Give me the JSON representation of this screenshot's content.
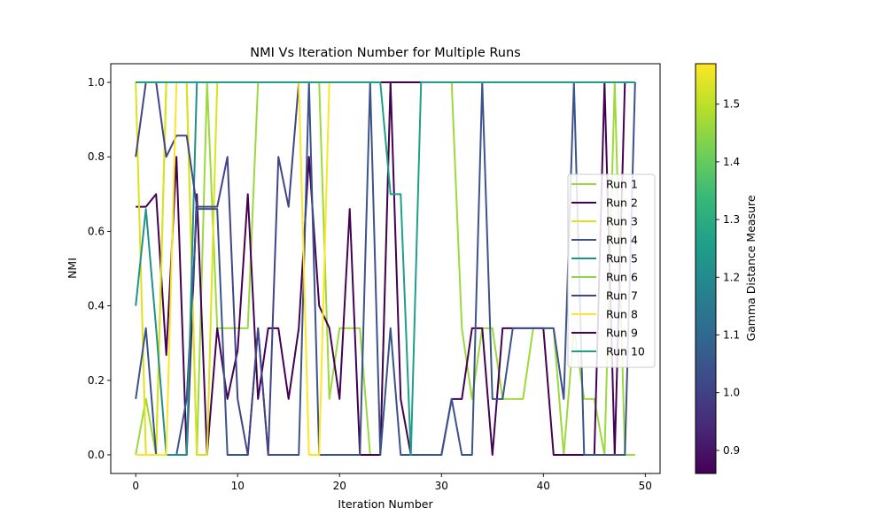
{
  "chart_data": {
    "type": "line",
    "title": "NMI Vs Iteration Number for Multiple Runs",
    "xlabel": "Iteration Number",
    "ylabel": "NMI",
    "xlim": [
      -2.45,
      51.45
    ],
    "ylim": [
      -0.05,
      1.05
    ],
    "xticks": [
      0,
      10,
      20,
      30,
      40,
      50
    ],
    "xtick_labels": [
      "0",
      "10",
      "20",
      "30",
      "40",
      "50"
    ],
    "yticks": [
      0.0,
      0.2,
      0.4,
      0.6,
      0.8,
      1.0
    ],
    "ytick_labels": [
      "0.0",
      "0.2",
      "0.4",
      "0.6",
      "0.8",
      "1.0"
    ],
    "grid": false,
    "legend_position": "center-right",
    "x": [
      0,
      1,
      2,
      3,
      4,
      5,
      6,
      7,
      8,
      9,
      10,
      11,
      12,
      13,
      14,
      15,
      16,
      17,
      18,
      19,
      20,
      21,
      22,
      23,
      24,
      25,
      26,
      27,
      28,
      29,
      30,
      31,
      32,
      33,
      34,
      35,
      36,
      37,
      38,
      39,
      40,
      41,
      42,
      43,
      44,
      45,
      46,
      47,
      48,
      49
    ],
    "series": [
      {
        "name": "Run 1",
        "color": "#9bd93c",
        "values": [
          0.0,
          0.15,
          0.0,
          1.0,
          1.0,
          1.0,
          0.0,
          1.0,
          0.34,
          0.34,
          0.34,
          0.34,
          1.0,
          1.0,
          1.0,
          1.0,
          1.0,
          1.0,
          1.0,
          0.15,
          0.34,
          0.34,
          0.34,
          0.0,
          0.0,
          1.0,
          1.0,
          1.0,
          1.0,
          1.0,
          1.0,
          1.0,
          0.34,
          0.15,
          0.34,
          0.34,
          0.15,
          0.15,
          0.15,
          0.34,
          0.34,
          0.34,
          0.0,
          0.34,
          0.15,
          0.15,
          0.0,
          1.0,
          0.0,
          0.0
        ]
      },
      {
        "name": "Run 2",
        "color": "#440154",
        "values": [
          0.666,
          0.666,
          0.7,
          0.268,
          0.8,
          0.0,
          0.7,
          0.0,
          0.34,
          0.15,
          0.28,
          0.7,
          0.15,
          0.34,
          0.34,
          0.15,
          0.34,
          0.8,
          0.4,
          0.34,
          0.15,
          0.66,
          0.0,
          0.0,
          0.0,
          1.0,
          0.15,
          0.0,
          0.0,
          0.0,
          0.0,
          0.15,
          0.15,
          0.34,
          0.34,
          0.0,
          0.34,
          0.34,
          0.34,
          0.34,
          0.34,
          0.0,
          0.0,
          0.0,
          0.0,
          0.0,
          1.0,
          0.0,
          1.0,
          1.0
        ]
      },
      {
        "name": "Run 3",
        "color": "#dde318",
        "values": [
          1.0,
          0.0,
          0.0,
          1.0,
          1.0,
          1.0,
          0.0,
          0.0,
          1.0,
          1.0,
          1.0,
          1.0,
          1.0,
          1.0,
          1.0,
          1.0,
          1.0,
          1.0,
          1.0,
          1.0,
          1.0,
          1.0,
          1.0,
          1.0,
          1.0,
          1.0,
          1.0,
          1.0,
          1.0,
          1.0,
          1.0,
          1.0,
          1.0,
          1.0,
          1.0,
          1.0,
          1.0,
          1.0,
          1.0,
          1.0,
          1.0,
          1.0,
          1.0,
          1.0,
          1.0,
          1.0,
          1.0,
          1.0,
          1.0,
          1.0
        ]
      },
      {
        "name": "Run 4",
        "color": "#3b528b",
        "values": [
          0.15,
          0.34,
          0.0,
          0.0,
          0.0,
          0.15,
          0.66,
          0.66,
          0.66,
          0.0,
          0.0,
          0.0,
          0.34,
          0.0,
          0.0,
          0.0,
          0.0,
          1.0,
          0.0,
          0.0,
          0.0,
          0.0,
          0.0,
          1.0,
          0.0,
          0.34,
          0.0,
          0.0,
          0.0,
          0.0,
          0.0,
          0.15,
          0.0,
          0.0,
          1.0,
          0.15,
          0.15,
          0.34,
          0.34,
          0.34,
          0.34,
          0.34,
          0.15,
          1.0,
          0.0,
          0.0,
          0.0,
          0.0,
          0.0,
          1.0
        ]
      },
      {
        "name": "Run 5",
        "color": "#21918c",
        "values": [
          0.4,
          0.66,
          0.34,
          0.0,
          0.0,
          0.0,
          1.0,
          1.0,
          1.0,
          1.0,
          1.0,
          1.0,
          1.0,
          1.0,
          1.0,
          1.0,
          1.0,
          1.0,
          1.0,
          1.0,
          1.0,
          1.0,
          1.0,
          1.0,
          1.0,
          1.0,
          1.0,
          1.0,
          1.0,
          1.0,
          1.0,
          1.0,
          1.0,
          1.0,
          1.0,
          1.0,
          1.0,
          1.0,
          1.0,
          1.0,
          1.0,
          1.0,
          1.0,
          1.0,
          1.0,
          1.0,
          1.0,
          1.0,
          1.0,
          1.0
        ]
      },
      {
        "name": "Run 6",
        "color": "#8ed645",
        "values": [
          1.0,
          1.0,
          1.0,
          1.0,
          1.0,
          1.0,
          1.0,
          1.0,
          1.0,
          1.0,
          1.0,
          1.0,
          1.0,
          1.0,
          1.0,
          1.0,
          1.0,
          1.0,
          1.0,
          1.0,
          1.0,
          1.0,
          1.0,
          1.0,
          1.0,
          1.0,
          1.0,
          1.0,
          1.0,
          1.0,
          1.0,
          1.0,
          1.0,
          1.0,
          1.0,
          1.0,
          1.0,
          1.0,
          1.0,
          1.0,
          1.0,
          1.0,
          1.0,
          1.0,
          1.0,
          1.0,
          1.0,
          1.0,
          1.0,
          1.0
        ]
      },
      {
        "name": "Run 7",
        "color": "#414487",
        "values": [
          0.8,
          1.0,
          1.0,
          0.8,
          0.857,
          0.857,
          0.666,
          0.666,
          0.666,
          0.8,
          0.15,
          0.0,
          0.34,
          0.0,
          0.8,
          0.666,
          1.0,
          1.0,
          1.0,
          1.0,
          1.0,
          1.0,
          1.0,
          1.0,
          1.0,
          1.0,
          1.0,
          1.0,
          1.0,
          1.0,
          1.0,
          1.0,
          1.0,
          1.0,
          1.0,
          1.0,
          1.0,
          1.0,
          1.0,
          1.0,
          1.0,
          1.0,
          1.0,
          1.0,
          1.0,
          1.0,
          1.0,
          1.0,
          1.0,
          1.0
        ]
      },
      {
        "name": "Run 8",
        "color": "#fde725",
        "values": [
          0.0,
          0.0,
          0.0,
          0.0,
          1.0,
          1.0,
          1.0,
          1.0,
          1.0,
          1.0,
          1.0,
          1.0,
          1.0,
          1.0,
          1.0,
          1.0,
          1.0,
          0.0,
          0.0,
          1.0,
          1.0,
          1.0,
          1.0,
          1.0,
          1.0,
          1.0,
          1.0,
          1.0,
          1.0,
          1.0,
          1.0,
          1.0,
          1.0,
          1.0,
          1.0,
          1.0,
          1.0,
          1.0,
          1.0,
          1.0,
          1.0,
          1.0,
          1.0,
          1.0,
          1.0,
          1.0,
          1.0,
          1.0,
          1.0,
          1.0
        ]
      },
      {
        "name": "Run 9",
        "color": "#440154",
        "values": [
          1.0,
          1.0,
          1.0,
          1.0,
          1.0,
          1.0,
          1.0,
          1.0,
          1.0,
          1.0,
          1.0,
          1.0,
          1.0,
          1.0,
          1.0,
          1.0,
          1.0,
          1.0,
          1.0,
          1.0,
          1.0,
          1.0,
          1.0,
          1.0,
          1.0,
          1.0,
          1.0,
          1.0,
          1.0,
          1.0,
          1.0,
          1.0,
          1.0,
          1.0,
          1.0,
          1.0,
          1.0,
          1.0,
          1.0,
          1.0,
          1.0,
          1.0,
          1.0,
          1.0,
          1.0,
          1.0,
          1.0,
          1.0,
          1.0,
          1.0
        ]
      },
      {
        "name": "Run 10",
        "color": "#1f9e89",
        "values": [
          1.0,
          1.0,
          1.0,
          1.0,
          1.0,
          1.0,
          1.0,
          1.0,
          1.0,
          1.0,
          1.0,
          1.0,
          1.0,
          1.0,
          1.0,
          1.0,
          1.0,
          1.0,
          1.0,
          1.0,
          1.0,
          1.0,
          1.0,
          1.0,
          1.0,
          0.7,
          0.7,
          0.0,
          1.0,
          1.0,
          1.0,
          1.0,
          1.0,
          1.0,
          1.0,
          1.0,
          1.0,
          1.0,
          1.0,
          1.0,
          1.0,
          1.0,
          1.0,
          1.0,
          1.0,
          1.0,
          1.0,
          1.0,
          1.0,
          1.0
        ]
      }
    ],
    "colorbar": {
      "label": "Gamma Distance Measure",
      "range": [
        0.86,
        1.57
      ],
      "ticks": [
        0.9,
        1.0,
        1.1,
        1.2,
        1.3,
        1.4,
        1.5
      ],
      "tick_labels": [
        "0.9",
        "1.0",
        "1.1",
        "1.2",
        "1.3",
        "1.4",
        "1.5"
      ],
      "colormap": [
        "#440154",
        "#482878",
        "#3e4989",
        "#31688e",
        "#26828e",
        "#1f9e89",
        "#35b779",
        "#6ece58",
        "#b5de2b",
        "#fde725"
      ]
    }
  }
}
